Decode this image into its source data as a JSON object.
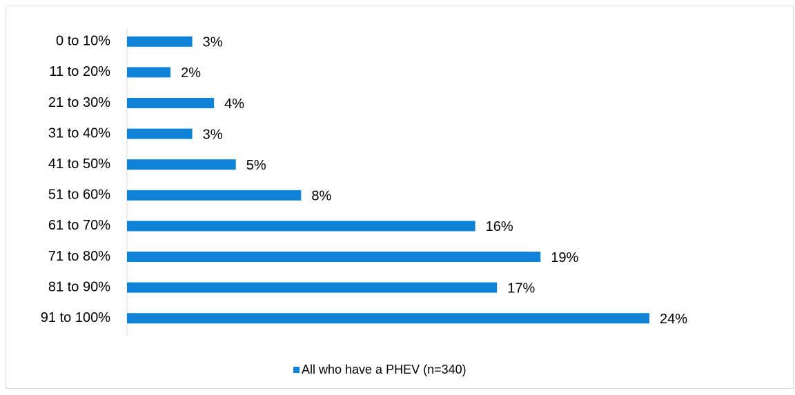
{
  "chart_data": {
    "type": "bar",
    "orientation": "horizontal",
    "categories": [
      "0 to 10%",
      "11 to 20%",
      "21 to 30%",
      "31 to 40%",
      "41 to 50%",
      "51 to 60%",
      "61 to 70%",
      "71 to 80%",
      "81 to 90%",
      "91 to 100%"
    ],
    "series": [
      {
        "name": "All who have a PHEV (n=340)",
        "color": "#0f83d6",
        "values": [
          3,
          2,
          4,
          3,
          5,
          8,
          16,
          19,
          17,
          24
        ],
        "value_labels": [
          "3%",
          "2%",
          "4%",
          "3%",
          "5%",
          "8%",
          "16%",
          "19%",
          "17%",
          "24%"
        ]
      }
    ],
    "legend": "bottom"
  }
}
